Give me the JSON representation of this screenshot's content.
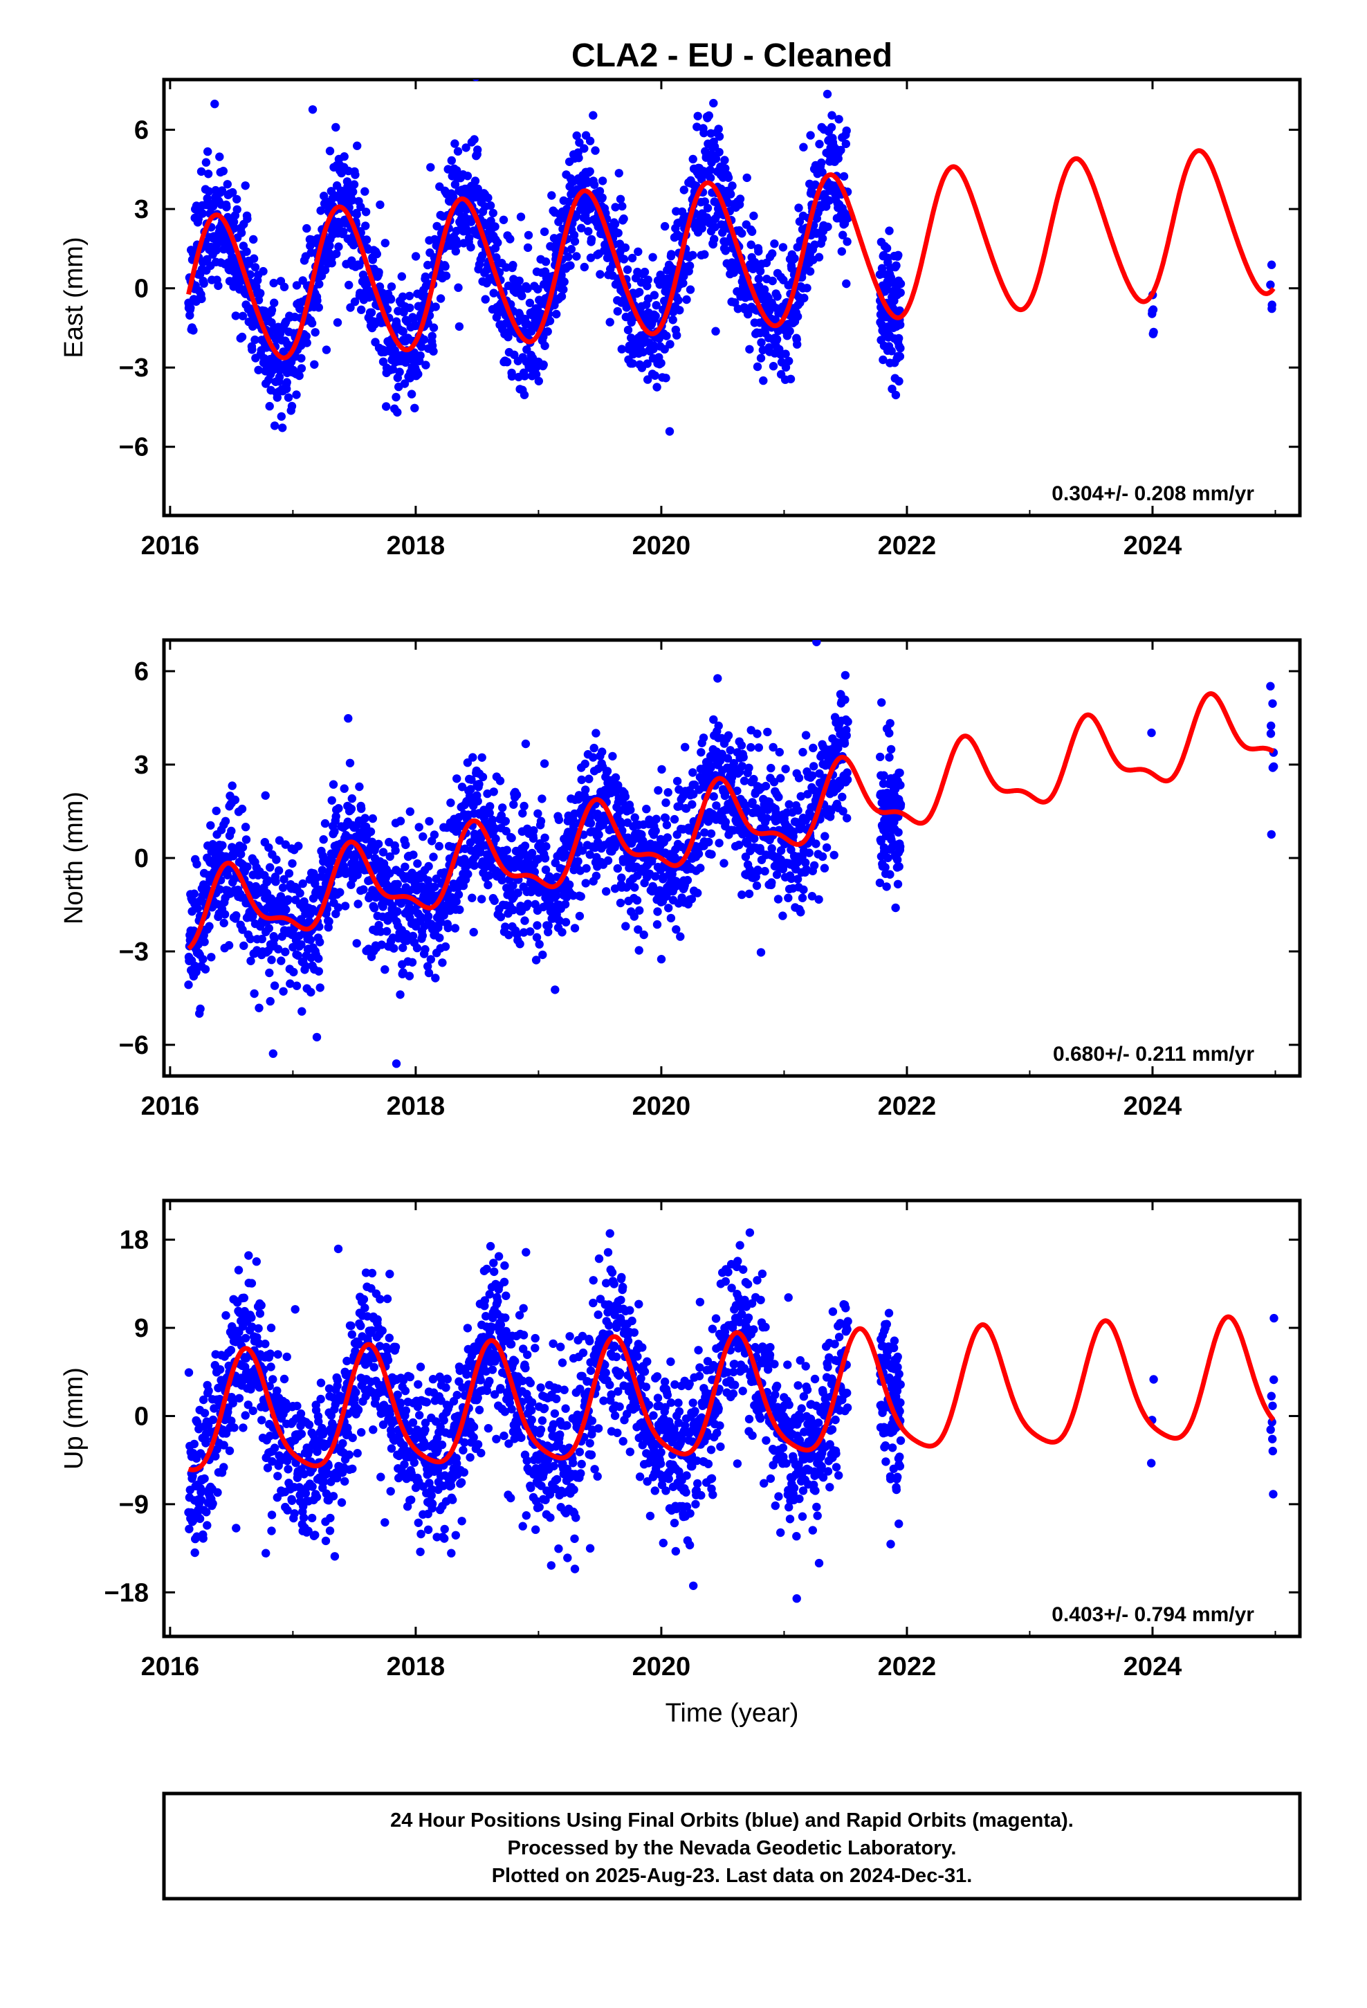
{
  "title": "CLA2  - EU - Cleaned",
  "xlabel": "Time (year)",
  "footer": {
    "line1": "24 Hour Positions Using Final Orbits (blue) and Rapid Orbits (magenta).",
    "line2": "Processed by the Nevada Geodetic Laboratory.",
    "line3": "Plotted on 2025-Aug-23. Last data on 2024-Dec-31."
  },
  "colors": {
    "points": "#0000ff",
    "model": "#ff0000",
    "frame": "#000000"
  },
  "chart_data": [
    {
      "type": "scatter",
      "panel": "east",
      "ylabel": "East (mm)",
      "xlim": [
        2015.95,
        2025.2
      ],
      "ylim": [
        -8.6,
        7.9
      ],
      "xticks": [
        2016,
        2018,
        2020,
        2022,
        2024
      ],
      "xticklabels": [
        "2016",
        "2018",
        "2020",
        "2022",
        "2024"
      ],
      "yticks": [
        -6,
        -3,
        0,
        3,
        6
      ],
      "yticklabels": [
        "−6",
        "−3",
        "0",
        "3",
        "6"
      ],
      "rate_label": "0.304+/- 0.208 mm/yr",
      "model": {
        "offset": -0.2,
        "rate": 0.304,
        "annual_amp": 2.75,
        "annual_peak": 0.4,
        "semiannual_amp": 0.25,
        "semiannual_peak": 0.3,
        "jitter_sd": 1.15,
        "outlier_scale": 3.8,
        "seed": 11
      },
      "observation_segments": [
        [
          2016.15,
          2021.52
        ],
        [
          2021.78,
          2021.95
        ],
        [
          2023.99,
          2024.01
        ],
        [
          2024.96,
          2024.99
        ]
      ],
      "series": [
        {
          "values_note": "",
          "x_start": 2016.15,
          "x_end": 2024.99
        }
      ]
    },
    {
      "type": "scatter",
      "panel": "north",
      "ylabel": "North (mm)",
      "xlim": [
        2015.95,
        2025.2
      ],
      "ylim": [
        -7.0,
        7.0
      ],
      "xticks": [
        2016,
        2018,
        2020,
        2022,
        2024
      ],
      "xticklabels": [
        "2016",
        "2018",
        "2020",
        "2022",
        "2024"
      ],
      "yticks": [
        -6,
        -3,
        0,
        3,
        6
      ],
      "yticklabels": [
        "−6",
        "−3",
        "0",
        "3",
        "6"
      ],
      "rate_label": "0.680+/- 0.211 mm/yr",
      "model": {
        "offset": -2.0,
        "rate": 0.68,
        "annual_amp": 1.1,
        "annual_peak": 0.5,
        "semiannual_amp": 0.45,
        "semiannual_peak": 0.45,
        "jitter_sd": 1.05,
        "outlier_scale": 3.6,
        "seed": 23
      },
      "observation_segments": [
        [
          2016.15,
          2021.52
        ],
        [
          2021.78,
          2021.95
        ],
        [
          2023.99,
          2024.01
        ],
        [
          2024.96,
          2024.99
        ]
      ],
      "series": [
        {
          "values_note": "",
          "x_start": 2016.15,
          "x_end": 2024.99
        }
      ]
    },
    {
      "type": "scatter",
      "panel": "up",
      "ylabel": "Up (mm)",
      "xlim": [
        2015.95,
        2025.2
      ],
      "ylim": [
        -22.5,
        22.0
      ],
      "xticks": [
        2016,
        2018,
        2020,
        2022,
        2024
      ],
      "xticklabels": [
        "2016",
        "2018",
        "2020",
        "2022",
        "2024"
      ],
      "yticks": [
        -18,
        -9,
        0,
        9,
        18
      ],
      "yticklabels": [
        "−18",
        "−9",
        "0",
        "9",
        "18"
      ],
      "rate_label": "0.403+/- 0.794 mm/yr",
      "model": {
        "offset": -0.5,
        "rate": 0.403,
        "annual_amp": 6.0,
        "annual_peak": 0.63,
        "semiannual_amp": 1.2,
        "semiannual_peak": 0.6,
        "jitter_sd": 4.0,
        "outlier_scale": 3.4,
        "seed": 37
      },
      "observation_segments": [
        [
          2016.15,
          2021.52
        ],
        [
          2021.78,
          2021.95
        ],
        [
          2023.99,
          2024.01
        ],
        [
          2024.96,
          2024.99
        ]
      ],
      "series": [
        {
          "values_note": "",
          "x_start": 2016.15,
          "x_end": 2024.99
        }
      ]
    }
  ]
}
